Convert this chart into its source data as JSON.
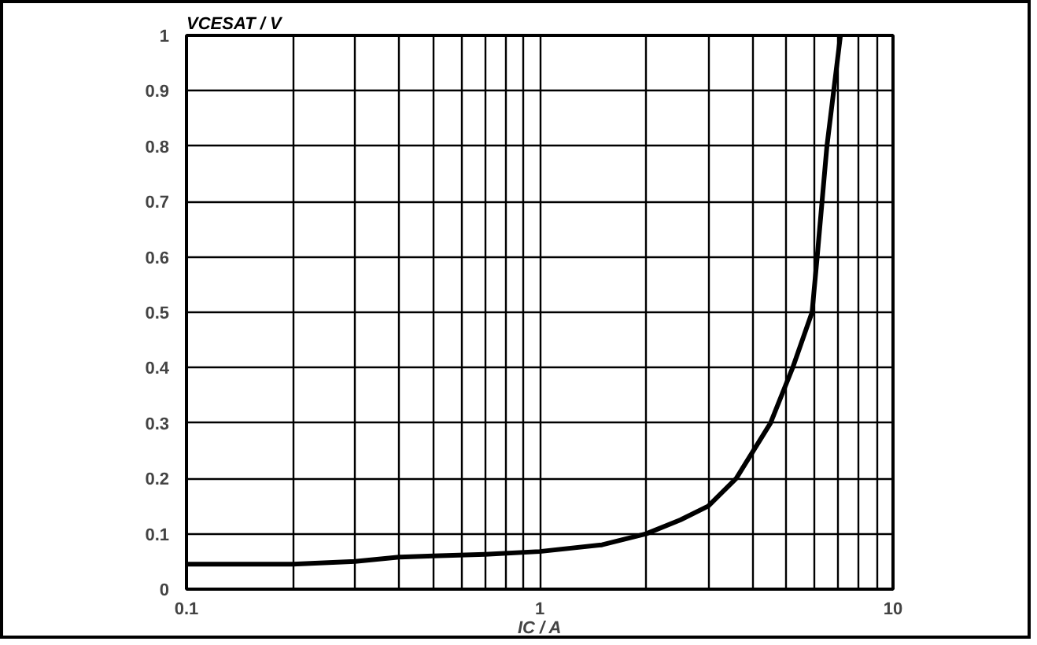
{
  "chart_data": {
    "type": "line",
    "xlabel": "IC / A",
    "ylabel": "VCESAT / V",
    "log": "x",
    "grid": true,
    "marker": "none",
    "line_style": "solid",
    "xlim": [
      0.1,
      10
    ],
    "ylim": [
      0,
      1
    ],
    "xticks": [
      0.1,
      {
        "value": 0.2,
        "label": null
      },
      {
        "value": 0.3,
        "label": null
      },
      {
        "value": 0.4,
        "label": null
      },
      {
        "value": 0.5,
        "label": null
      },
      {
        "value": 0.6,
        "label": null
      },
      {
        "value": 0.7,
        "label": null
      },
      {
        "value": 0.8,
        "label": null
      },
      {
        "value": 0.9,
        "label": null
      },
      1,
      {
        "value": 2,
        "label": null
      },
      {
        "value": 3,
        "label": null
      },
      {
        "value": 4,
        "label": null
      },
      {
        "value": 5,
        "label": null
      },
      {
        "value": 6,
        "label": null
      },
      {
        "value": 7,
        "label": null
      },
      {
        "value": 8,
        "label": null
      },
      {
        "value": 9,
        "label": null
      },
      10
    ],
    "yticks": [
      0,
      0.1,
      0.2,
      0.3,
      0.4,
      0.5,
      0.6,
      0.7,
      0.8,
      0.9,
      1
    ],
    "series": [
      {
        "color": "#000000",
        "x": [
          0.1,
          0.2,
          0.3,
          0.4,
          0.5,
          0.7,
          1,
          1.5,
          2,
          2.5,
          3,
          3.6,
          4.5,
          5.2,
          5.9,
          6.1,
          6.5,
          7.1
        ],
        "values": [
          0.045,
          0.045,
          0.05,
          0.058,
          0.06,
          0.063,
          0.068,
          0.08,
          0.1,
          0.125,
          0.15,
          0.2,
          0.3,
          0.4,
          0.5,
          0.6,
          0.8,
          1.0
        ]
      }
    ]
  }
}
